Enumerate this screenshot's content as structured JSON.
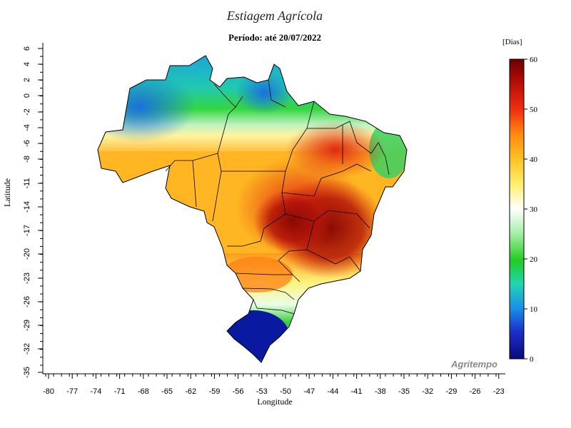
{
  "title": "Estiagem Agrícola",
  "subtitle": "Período: até 20/07/2022",
  "units_label": "[Dias]",
  "watermark": "Agritempo",
  "axes": {
    "xlabel": "Longitude",
    "ylabel": "Latitude",
    "x_ticks": [
      "-80",
      "-77",
      "-74",
      "-71",
      "-68",
      "-65",
      "-62",
      "-59",
      "-56",
      "-53",
      "-50",
      "-47",
      "-44",
      "-41",
      "-38",
      "-35",
      "-32",
      "-29",
      "-26",
      "-23"
    ],
    "y_ticks": [
      "6",
      "4",
      "2",
      "0",
      "-2",
      "-4",
      "-6",
      "-8",
      "-11",
      "-14",
      "-17",
      "-20",
      "-23",
      "-26",
      "-29",
      "-32",
      "-35"
    ]
  },
  "colorbar": {
    "min": 0,
    "max": 60,
    "ticks": [
      "0",
      "10",
      "20",
      "30",
      "40",
      "50",
      "60"
    ],
    "colors": [
      "#0a0a7a",
      "#1a3fd6",
      "#1aa8e8",
      "#25d18a",
      "#22cc22",
      "#a8f0a8",
      "#ffffff",
      "#fff070",
      "#ffc020",
      "#ff8a10",
      "#f03010",
      "#b80d08",
      "#6a0000"
    ]
  },
  "map_regions": [
    {
      "name": "north-west-amazon",
      "days": 12
    },
    {
      "name": "amapa-roraima",
      "days": 16
    },
    {
      "name": "center-amazon-band",
      "days": 22
    },
    {
      "name": "mato-grosso-goias",
      "days": 42
    },
    {
      "name": "bahia-minas",
      "days": 57
    },
    {
      "name": "parana",
      "days": 26
    },
    {
      "name": "rio-grande-do-sul",
      "days": 4
    },
    {
      "name": "northeast-coast",
      "days": 20
    }
  ]
}
